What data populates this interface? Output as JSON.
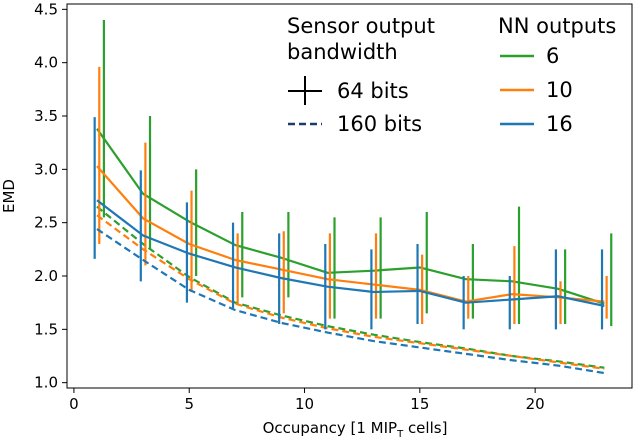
{
  "chart_data": {
    "type": "line",
    "xlabel_main": "Occupancy [1 MIP",
    "xlabel_sub": "T",
    "xlabel_tail": " cells]",
    "ylabel": "EMD",
    "xlim": [
      -0.3,
      24.2
    ],
    "ylim": [
      0.95,
      4.55
    ],
    "xticks": [
      0,
      5,
      10,
      15,
      20
    ],
    "yticks": [
      1.0,
      1.5,
      2.0,
      2.5,
      3.0,
      3.5,
      4.0,
      4.5
    ],
    "ytick_labels": [
      "1.0",
      "1.5",
      "2.0",
      "2.5",
      "3.0",
      "3.5",
      "4.0",
      "4.5"
    ],
    "x": [
      1,
      3,
      5,
      7,
      9,
      11,
      13,
      15,
      17,
      19,
      21,
      23
    ],
    "legend_bandwidth": {
      "title_line1": "Sensor output",
      "title_line2": "bandwidth",
      "entries": [
        {
          "label": "64 bits",
          "style": "solid"
        },
        {
          "label": "160 bits",
          "style": "dashed"
        }
      ]
    },
    "legend_outputs": {
      "title": "NN outputs",
      "entries": [
        {
          "label": "6",
          "color": "#2ca02c"
        },
        {
          "label": "10",
          "color": "#ff7f0e"
        },
        {
          "label": "16",
          "color": "#1f77b4"
        }
      ]
    },
    "series": [
      {
        "name": "6",
        "color": "#2ca02c",
        "offset": 0.3,
        "solid": [
          3.38,
          2.77,
          2.51,
          2.29,
          2.17,
          2.03,
          2.05,
          2.08,
          1.97,
          1.95,
          1.88,
          1.74
        ],
        "err_low": [
          2.55,
          2.25,
          2.0,
          1.8,
          1.8,
          1.6,
          1.6,
          1.65,
          1.6,
          1.55,
          1.55,
          1.53
        ],
        "err_high": [
          4.4,
          3.5,
          3.0,
          2.6,
          2.6,
          2.55,
          2.55,
          2.6,
          2.3,
          2.65,
          2.25,
          2.4
        ],
        "dashed": [
          2.65,
          2.3,
          1.99,
          1.75,
          1.63,
          1.53,
          1.45,
          1.38,
          1.32,
          1.25,
          1.2,
          1.14
        ]
      },
      {
        "name": "10",
        "color": "#ff7f0e",
        "offset": 0.1,
        "solid": [
          3.03,
          2.54,
          2.3,
          2.15,
          2.06,
          1.97,
          1.92,
          1.87,
          1.76,
          1.83,
          1.8,
          1.76
        ],
        "err_low": [
          2.3,
          2.1,
          1.85,
          1.75,
          1.65,
          1.6,
          1.6,
          1.55,
          1.6,
          1.55,
          1.55,
          1.6
        ],
        "err_high": [
          3.96,
          3.25,
          2.8,
          2.4,
          2.42,
          2.4,
          2.4,
          2.2,
          2.0,
          2.28,
          1.95,
          2.0
        ],
        "dashed": [
          2.57,
          2.25,
          1.97,
          1.74,
          1.61,
          1.51,
          1.43,
          1.37,
          1.31,
          1.25,
          1.19,
          1.13
        ]
      },
      {
        "name": "16",
        "color": "#1f77b4",
        "offset": -0.1,
        "solid": [
          2.71,
          2.38,
          2.21,
          2.08,
          1.98,
          1.9,
          1.85,
          1.86,
          1.75,
          1.78,
          1.81,
          1.72
        ],
        "err_low": [
          2.16,
          1.95,
          1.75,
          1.7,
          1.55,
          1.5,
          1.5,
          1.55,
          1.5,
          1.5,
          1.5,
          1.5
        ],
        "err_high": [
          3.49,
          2.99,
          2.69,
          2.5,
          2.4,
          2.3,
          2.25,
          2.3,
          2.0,
          2.0,
          2.25,
          2.25
        ],
        "dashed": [
          2.44,
          2.15,
          1.87,
          1.68,
          1.56,
          1.47,
          1.39,
          1.33,
          1.27,
          1.21,
          1.16,
          1.09
        ]
      }
    ]
  }
}
